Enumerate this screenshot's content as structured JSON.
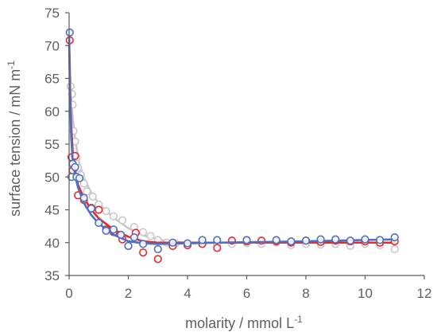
{
  "chart_data": {
    "type": "scatter",
    "title": "",
    "xlabel": "molarity  / mmol L",
    "xlabel_superscript": "-1",
    "ylabel": "surface tension  / mN m",
    "ylabel_superscript": "-1",
    "xlim": [
      0,
      12
    ],
    "ylim": [
      35,
      75
    ],
    "x_ticks": [
      0,
      2,
      4,
      6,
      8,
      10,
      12
    ],
    "y_ticks": [
      35,
      40,
      45,
      50,
      55,
      60,
      65,
      70,
      75
    ],
    "grid": false,
    "legend": "none",
    "series": [
      {
        "color": "#c8c8c8",
        "marker": "open-circle",
        "points": [
          [
            0.05,
            63.8
          ],
          [
            0.1,
            62.6
          ],
          [
            0.12,
            61.0
          ],
          [
            0.15,
            57.0
          ],
          [
            0.2,
            55.4
          ],
          [
            0.25,
            53.0
          ],
          [
            0.3,
            51.4
          ],
          [
            0.4,
            50.3
          ],
          [
            0.5,
            49.0
          ],
          [
            0.6,
            47.8
          ],
          [
            0.8,
            47.0
          ],
          [
            1.0,
            45.8
          ],
          [
            1.25,
            44.8
          ],
          [
            1.5,
            44.0
          ],
          [
            1.8,
            43.4
          ],
          [
            2.2,
            42.4
          ],
          [
            2.5,
            41.6
          ],
          [
            2.75,
            41.0
          ],
          [
            3.0,
            40.4
          ],
          [
            3.3,
            40.0
          ],
          [
            3.6,
            39.9
          ],
          [
            4.0,
            39.8
          ],
          [
            4.5,
            40.0
          ],
          [
            5.0,
            39.8
          ],
          [
            5.5,
            39.8
          ],
          [
            6.0,
            39.9
          ],
          [
            6.5,
            39.8
          ],
          [
            7.0,
            40.0
          ],
          [
            7.5,
            39.6
          ],
          [
            8.0,
            39.8
          ],
          [
            8.5,
            39.7
          ],
          [
            9.0,
            39.8
          ],
          [
            9.5,
            39.5
          ],
          [
            10.0,
            39.8
          ],
          [
            10.5,
            39.6
          ],
          [
            11.0,
            39.0
          ]
        ],
        "fit_curve": [
          [
            0.0,
            70.0
          ],
          [
            0.05,
            64.0
          ],
          [
            0.1,
            60.0
          ],
          [
            0.2,
            55.8
          ],
          [
            0.35,
            52.0
          ],
          [
            0.5,
            49.8
          ],
          [
            0.75,
            47.6
          ],
          [
            1.0,
            46.0
          ],
          [
            1.5,
            43.8
          ],
          [
            2.0,
            42.2
          ],
          [
            2.5,
            41.1
          ],
          [
            3.0,
            40.5
          ],
          [
            3.5,
            40.1
          ],
          [
            4.0,
            40.0
          ],
          [
            6.0,
            40.0
          ],
          [
            8.0,
            40.0
          ],
          [
            11.0,
            40.0
          ]
        ]
      },
      {
        "color": "#e8282b",
        "marker": "open-circle",
        "points": [
          [
            0.02,
            70.8
          ],
          [
            0.08,
            53.0
          ],
          [
            0.12,
            51.0
          ],
          [
            0.2,
            53.2
          ],
          [
            0.25,
            50.0
          ],
          [
            0.3,
            47.2
          ],
          [
            0.5,
            46.5
          ],
          [
            0.75,
            45.3
          ],
          [
            1.0,
            45.0
          ],
          [
            1.25,
            42.0
          ],
          [
            1.5,
            41.6
          ],
          [
            1.8,
            40.5
          ],
          [
            2.0,
            39.5
          ],
          [
            2.25,
            41.5
          ],
          [
            2.5,
            38.5
          ],
          [
            3.0,
            37.5
          ],
          [
            3.5,
            39.5
          ],
          [
            4.0,
            39.6
          ],
          [
            4.5,
            39.8
          ],
          [
            5.0,
            39.2
          ],
          [
            5.5,
            40.3
          ],
          [
            6.0,
            40.2
          ],
          [
            6.5,
            40.3
          ],
          [
            7.0,
            40.2
          ],
          [
            7.5,
            40.0
          ],
          [
            8.0,
            40.3
          ],
          [
            8.5,
            40.1
          ],
          [
            9.0,
            40.3
          ],
          [
            9.5,
            40.2
          ],
          [
            10.0,
            40.2
          ],
          [
            10.5,
            40.0
          ],
          [
            11.0,
            40.2
          ]
        ],
        "fit_curve": [
          [
            0.0,
            71.0
          ],
          [
            0.03,
            64.0
          ],
          [
            0.07,
            58.0
          ],
          [
            0.12,
            54.0
          ],
          [
            0.2,
            51.0
          ],
          [
            0.3,
            48.8
          ],
          [
            0.5,
            46.8
          ],
          [
            0.75,
            45.0
          ],
          [
            1.0,
            43.7
          ],
          [
            1.5,
            42.0
          ],
          [
            2.0,
            40.9
          ],
          [
            2.5,
            40.2
          ],
          [
            3.0,
            40.0
          ],
          [
            6.0,
            40.0
          ],
          [
            8.0,
            40.0
          ],
          [
            11.0,
            40.0
          ]
        ]
      },
      {
        "color": "#4a72c4",
        "marker": "open-circle",
        "points": [
          [
            0.02,
            72.0
          ],
          [
            0.08,
            50.0
          ],
          [
            0.12,
            52.0
          ],
          [
            0.2,
            51.5
          ],
          [
            0.25,
            50.0
          ],
          [
            0.35,
            49.8
          ],
          [
            0.5,
            46.8
          ],
          [
            0.75,
            45.2
          ],
          [
            1.0,
            43.0
          ],
          [
            1.25,
            41.8
          ],
          [
            1.5,
            42.0
          ],
          [
            1.75,
            41.2
          ],
          [
            2.0,
            39.5
          ],
          [
            2.2,
            40.8
          ],
          [
            2.5,
            39.8
          ],
          [
            3.0,
            39.0
          ],
          [
            3.5,
            40.0
          ],
          [
            4.0,
            39.9
          ],
          [
            4.5,
            40.4
          ],
          [
            5.0,
            40.4
          ],
          [
            6.0,
            40.4
          ],
          [
            7.0,
            40.4
          ],
          [
            7.5,
            40.2
          ],
          [
            8.0,
            40.3
          ],
          [
            8.5,
            40.5
          ],
          [
            9.0,
            40.5
          ],
          [
            9.5,
            40.3
          ],
          [
            10.0,
            40.5
          ],
          [
            10.5,
            40.4
          ],
          [
            11.0,
            40.8
          ]
        ],
        "fit_curve": [
          [
            0.0,
            72.0
          ],
          [
            0.03,
            62.0
          ],
          [
            0.07,
            56.0
          ],
          [
            0.12,
            52.6
          ],
          [
            0.2,
            50.2
          ],
          [
            0.3,
            48.4
          ],
          [
            0.5,
            46.0
          ],
          [
            0.75,
            44.2
          ],
          [
            1.0,
            42.9
          ],
          [
            1.5,
            41.2
          ],
          [
            2.0,
            40.2
          ],
          [
            2.5,
            39.9
          ],
          [
            3.0,
            39.8
          ],
          [
            5.0,
            40.0
          ],
          [
            8.0,
            40.2
          ],
          [
            11.0,
            40.5
          ]
        ]
      }
    ]
  }
}
